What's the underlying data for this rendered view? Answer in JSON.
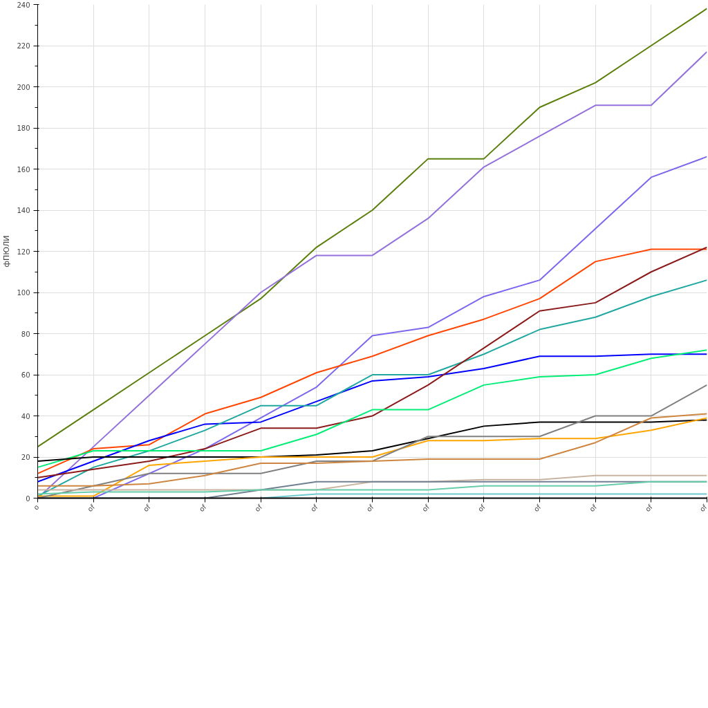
{
  "chart_data": {
    "type": "line",
    "ylabel": "фПЮЛИ",
    "categories": [
      "o",
      "of",
      "of",
      "of",
      "of",
      "of",
      "of",
      "of",
      "of",
      "of",
      "of",
      "of",
      "of"
    ],
    "ylim": [
      0,
      240
    ],
    "yticks": [
      0,
      {
        "value": 10,
        "label": null
      },
      20,
      {
        "value": 30,
        "label": null
      },
      40,
      {
        "value": 50,
        "label": null
      },
      60,
      {
        "value": 70,
        "label": null
      },
      80,
      {
        "value": 90,
        "label": null
      },
      100,
      {
        "value": 110,
        "label": null
      },
      120,
      {
        "value": 130,
        "label": null
      },
      140,
      {
        "value": 150,
        "label": null
      },
      160,
      {
        "value": 170,
        "label": null
      },
      180,
      {
        "value": 190,
        "label": null
      },
      200,
      {
        "value": 210,
        "label": null
      },
      220,
      {
        "value": 230,
        "label": null
      },
      240
    ],
    "grid": true,
    "marker": "none",
    "line_style": "solid",
    "series": [
      {
        "color": "#5a7f0a",
        "values": [
          25,
          43,
          61,
          79,
          97,
          122,
          140,
          165,
          165,
          190,
          202,
          220,
          238
        ]
      },
      {
        "color": "#9370db",
        "values": [
          0,
          25,
          50,
          75,
          100,
          118,
          118,
          136,
          161,
          176,
          191,
          191,
          217
        ]
      },
      {
        "color": "#7b68ee",
        "values": [
          null,
          0,
          12,
          24,
          39,
          54,
          79,
          83,
          98,
          106,
          131,
          156,
          166
        ]
      },
      {
        "color": "#ff4500",
        "values": [
          12,
          24,
          26,
          41,
          49,
          61,
          69,
          79,
          87,
          97,
          115,
          121,
          121
        ]
      },
      {
        "color": "#0000ff",
        "values": [
          8,
          18,
          28,
          36,
          37,
          47,
          57,
          59,
          63,
          69,
          69,
          70,
          70
        ]
      },
      {
        "color": "#20a8a0",
        "values": [
          1,
          15,
          23,
          33,
          45,
          45,
          60,
          60,
          70,
          82,
          88,
          98,
          106
        ]
      },
      {
        "color": "#8b1a1a",
        "values": [
          10,
          14,
          18,
          24,
          34,
          34,
          40,
          55,
          73,
          91,
          95,
          110,
          122
        ]
      },
      {
        "color": "#00ee76",
        "values": [
          15,
          23,
          23,
          23,
          23,
          31,
          43,
          43,
          55,
          59,
          60,
          68,
          72
        ]
      },
      {
        "color": "#000000",
        "values": [
          18,
          20,
          20,
          20,
          20,
          21,
          23,
          29,
          35,
          37,
          37,
          37,
          38
        ]
      },
      {
        "color": "#ffa500",
        "values": [
          1,
          1,
          16,
          18,
          20,
          20,
          20,
          28,
          28,
          29,
          29,
          33,
          39
        ]
      },
      {
        "color": "#808080",
        "values": [
          0,
          6,
          12,
          12,
          12,
          18,
          18,
          30,
          30,
          30,
          40,
          40,
          55
        ]
      },
      {
        "color": "#cd853f",
        "values": [
          6,
          6,
          7,
          11,
          17,
          17,
          18,
          19,
          19,
          19,
          27,
          39,
          41
        ]
      },
      {
        "color": "#c8b4a0",
        "values": [
          4,
          4,
          4,
          4,
          4,
          4,
          8,
          8,
          9,
          9,
          11,
          11,
          11
        ]
      },
      {
        "color": "#708090",
        "values": [
          0,
          0,
          0,
          0,
          4,
          8,
          8,
          8,
          8,
          8,
          8,
          8,
          8
        ]
      },
      {
        "color": "#66cdaa",
        "values": [
          2,
          3,
          3,
          3,
          4,
          4,
          4,
          4,
          6,
          6,
          6,
          8,
          8
        ]
      },
      {
        "color": "#70c8d0",
        "values": [
          null,
          null,
          null,
          null,
          0,
          2,
          2,
          2,
          2,
          2,
          2,
          2,
          2
        ]
      }
    ]
  }
}
